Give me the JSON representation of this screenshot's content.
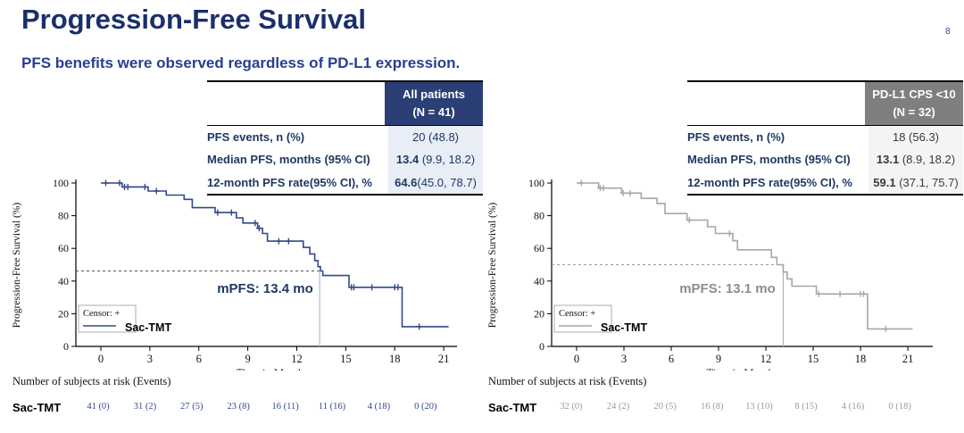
{
  "page": {
    "title": "Progression-Free Survival",
    "subtitle": "PFS benefits were observed regardless of PD-L1 expression.",
    "page_number": "8"
  },
  "colors": {
    "title_navy": "#1b2f6b",
    "subtitle_blue": "#283f8f",
    "left_header_bg": "#2b3f76",
    "left_value_bg": "#e8edf6",
    "right_header_bg": "#7f7f7f",
    "right_value_bg": "#f4f4f4",
    "left_curve": "#33488e",
    "right_curve": "#a6a6a6"
  },
  "panels": [
    {
      "table": {
        "header_line1": "All patients",
        "header_line2": "(N = 41)",
        "rows": [
          {
            "label": "PFS events, n (%)",
            "bold": "",
            "rest": "20 (48.8)"
          },
          {
            "label": "Median PFS, months (95% CI)",
            "bold": "13.4",
            "rest": " (9.9, 18.2)"
          },
          {
            "label": "12-month PFS rate(95% CI), %",
            "bold": "64.6",
            "rest": "(45.0, 78.7)"
          }
        ]
      }
    },
    {
      "table": {
        "header_line1": "PD-L1 CPS <10",
        "header_line2": "(N = 32)",
        "rows": [
          {
            "label": "PFS events, n (%)",
            "bold": "",
            "rest": "18 (56.3)"
          },
          {
            "label": "Median PFS, months (95% CI)",
            "bold": "13.1",
            "rest": " (8.9, 18.2)"
          },
          {
            "label": "12-month PFS rate(95% CI),  %",
            "bold": "59.1",
            "rest": " (37.1, 75.7)"
          }
        ]
      }
    }
  ],
  "chart_data": [
    {
      "type": "line",
      "subtype": "kaplan-meier-step",
      "title": "",
      "xlabel": "Time in Months",
      "ylabel": "Progression-Free Survival (%)",
      "xlim": [
        0,
        21
      ],
      "ylim": [
        0,
        100
      ],
      "xticks": [
        0,
        3,
        6,
        9,
        12,
        15,
        18,
        21
      ],
      "yticks": [
        0,
        20,
        40,
        60,
        80,
        100
      ],
      "grid": false,
      "legend": {
        "censor_label": "Censor: +",
        "series_label": "Sac-TMT",
        "position": "bottom-left"
      },
      "series": [
        {
          "name": "Sac-TMT",
          "color": "#33488e",
          "points": [
            [
              0,
              100
            ],
            [
              1.3,
              97.6
            ],
            [
              2.9,
              95.1
            ],
            [
              4.0,
              92.6
            ],
            [
              5.1,
              90.0
            ],
            [
              5.6,
              84.9
            ],
            [
              7.0,
              81.9
            ],
            [
              8.3,
              78.7
            ],
            [
              8.7,
              75.5
            ],
            [
              9.6,
              72.3
            ],
            [
              9.9,
              69.1
            ],
            [
              10.2,
              64.4
            ],
            [
              12.4,
              60.6
            ],
            [
              12.8,
              56.6
            ],
            [
              13.1,
              52.5
            ],
            [
              13.3,
              48.8
            ],
            [
              13.45,
              46.2
            ],
            [
              13.6,
              43.4
            ],
            [
              15.2,
              36.2
            ],
            [
              18.45,
              12.1
            ],
            [
              21.3,
              12.1
            ]
          ],
          "censors": [
            [
              0.3,
              100
            ],
            [
              1.15,
              100
            ],
            [
              1.45,
              97.6
            ],
            [
              1.65,
              97.6
            ],
            [
              2.7,
              97.6
            ],
            [
              3.4,
              95.1
            ],
            [
              7.15,
              81.9
            ],
            [
              8.0,
              81.9
            ],
            [
              9.45,
              75.5
            ],
            [
              9.7,
              72.3
            ],
            [
              10.9,
              64.4
            ],
            [
              11.5,
              64.4
            ],
            [
              15.35,
              36.2
            ],
            [
              15.5,
              36.2
            ],
            [
              16.6,
              36.2
            ],
            [
              18.0,
              36.2
            ],
            [
              18.2,
              36.2
            ],
            [
              19.5,
              12.1
            ]
          ]
        }
      ],
      "annotation": "mPFS: 13.4 mo",
      "median_time": 13.4,
      "median_level": 46.2,
      "risk_table": {
        "header": "Number of subjects at risk (Events)",
        "row_label": "Sac-TMT",
        "values": [
          "41 (0)",
          "31 (2)",
          "27 (5)",
          "23 (8)",
          "16 (11)",
          "11 (16)",
          "4 (18)",
          "0 (20)"
        ]
      }
    },
    {
      "type": "line",
      "subtype": "kaplan-meier-step",
      "title": "",
      "xlabel": "Time in Months",
      "ylabel": "Progression-Free Survival (%)",
      "xlim": [
        0,
        21
      ],
      "ylim": [
        0,
        100
      ],
      "xticks": [
        0,
        3,
        6,
        9,
        12,
        15,
        18,
        21
      ],
      "yticks": [
        0,
        20,
        40,
        60,
        80,
        100
      ],
      "grid": false,
      "legend": {
        "censor_label": "Censor: +",
        "series_label": "Sac-TMT",
        "position": "bottom-left"
      },
      "series": [
        {
          "name": "Sac-TMT",
          "color": "#a6a6a6",
          "points": [
            [
              0,
              100
            ],
            [
              1.4,
              96.9
            ],
            [
              2.85,
              93.8
            ],
            [
              4.1,
              90.6
            ],
            [
              5.1,
              87.5
            ],
            [
              5.6,
              81.3
            ],
            [
              7.0,
              77.3
            ],
            [
              8.3,
              73.2
            ],
            [
              8.8,
              69.1
            ],
            [
              9.9,
              64.7
            ],
            [
              10.2,
              59.1
            ],
            [
              12.35,
              54.5
            ],
            [
              12.7,
              50.0
            ],
            [
              13.1,
              45.5
            ],
            [
              13.35,
              41.3
            ],
            [
              13.65,
              36.9
            ],
            [
              15.2,
              32.1
            ],
            [
              18.45,
              10.7
            ],
            [
              21.3,
              10.7
            ]
          ],
          "censors": [
            [
              0.3,
              100
            ],
            [
              1.5,
              96.9
            ],
            [
              1.7,
              96.9
            ],
            [
              2.95,
              93.8
            ],
            [
              3.4,
              93.8
            ],
            [
              7.15,
              77.3
            ],
            [
              9.7,
              69.1
            ],
            [
              15.35,
              32.1
            ],
            [
              16.7,
              32.1
            ],
            [
              18.0,
              32.1
            ],
            [
              18.2,
              32.1
            ],
            [
              19.6,
              10.7
            ]
          ]
        }
      ],
      "annotation": "mPFS: 13.1 mo",
      "median_time": 13.1,
      "median_level": 50.0,
      "risk_table": {
        "header": "Number of subjects at risk (Events)",
        "row_label": "Sac-TMT",
        "values": [
          "32 (0)",
          "24 (2)",
          "20 (5)",
          "16 (8)",
          "13 (10)",
          "8 (15)",
          "4 (16)",
          "0 (18)"
        ]
      }
    }
  ]
}
